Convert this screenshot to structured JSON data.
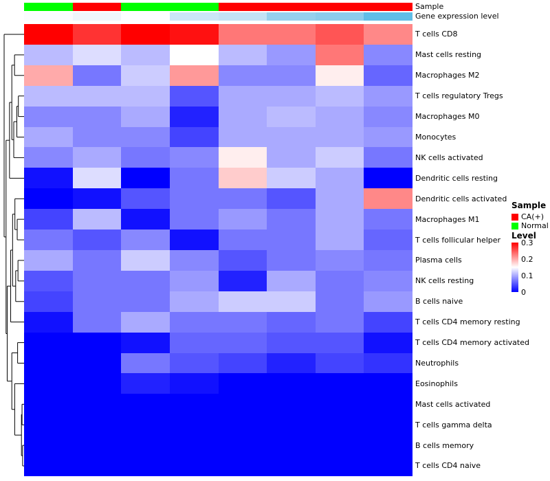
{
  "annotations": {
    "sample_label": "Sample",
    "expression_label": "Gene expression level"
  },
  "legends": {
    "sample": {
      "title": "Sample",
      "items": [
        {
          "label": "CA(+)",
          "color": "#FF0000"
        },
        {
          "label": "Normal",
          "color": "#00FF00"
        }
      ]
    },
    "level": {
      "title": "Level",
      "ticks": [
        "0.3",
        "0.2",
        "0.1",
        "0"
      ],
      "top_color": "#FF0000",
      "mid_color": "#FFFFFF",
      "bottom_color": "#0000FF"
    }
  },
  "chart_data": {
    "type": "heatmap",
    "n_columns": 8,
    "value_range": [
      0,
      0.3
    ],
    "colormap": {
      "low": "#0000FF",
      "mid": "#FFFFFF",
      "high": "#FF0000",
      "midpoint": 0.15
    },
    "rows": [
      "T cells CD8",
      "Mast cells resting",
      "Macrophages M2",
      "T cells regulatory  Tregs",
      "Macrophages M0",
      "Monocytes",
      "NK cells activated",
      "Dendritic cells resting",
      "Dendritic cells activated",
      "Macrophages M1",
      "T cells follicular helper",
      "Plasma cells",
      "NK cells resting",
      "B cells naive",
      "T cells CD4 memory resting",
      "T cells CD4 memory activated",
      "Neutrophils",
      "Eosinophils",
      "Mast cells activated",
      "T cells gamma delta",
      "B cells memory",
      "T cells CD4 naive"
    ],
    "values": [
      [
        0.3,
        0.27,
        0.3,
        0.29,
        0.23,
        0.23,
        0.25,
        0.22
      ],
      [
        0.11,
        0.13,
        0.11,
        0.15,
        0.11,
        0.09,
        0.23,
        0.08
      ],
      [
        0.2,
        0.07,
        0.12,
        0.21,
        0.08,
        0.08,
        0.16,
        0.06
      ],
      [
        0.11,
        0.11,
        0.11,
        0.05,
        0.1,
        0.1,
        0.11,
        0.09
      ],
      [
        0.08,
        0.08,
        0.1,
        0.02,
        0.1,
        0.11,
        0.1,
        0.08
      ],
      [
        0.1,
        0.08,
        0.08,
        0.04,
        0.1,
        0.1,
        0.1,
        0.09
      ],
      [
        0.08,
        0.1,
        0.07,
        0.08,
        0.16,
        0.1,
        0.12,
        0.07
      ],
      [
        0.01,
        0.13,
        0.0,
        0.07,
        0.18,
        0.12,
        0.1,
        0.0
      ],
      [
        0.0,
        0.01,
        0.05,
        0.07,
        0.07,
        0.05,
        0.1,
        0.22
      ],
      [
        0.04,
        0.11,
        0.01,
        0.07,
        0.09,
        0.07,
        0.1,
        0.07
      ],
      [
        0.07,
        0.05,
        0.08,
        0.01,
        0.07,
        0.07,
        0.1,
        0.06
      ],
      [
        0.1,
        0.07,
        0.12,
        0.08,
        0.05,
        0.07,
        0.08,
        0.07
      ],
      [
        0.05,
        0.07,
        0.07,
        0.09,
        0.02,
        0.1,
        0.07,
        0.08
      ],
      [
        0.04,
        0.07,
        0.07,
        0.1,
        0.12,
        0.12,
        0.07,
        0.09
      ],
      [
        0.01,
        0.07,
        0.1,
        0.07,
        0.07,
        0.06,
        0.07,
        0.04
      ],
      [
        0.0,
        0.0,
        0.01,
        0.06,
        0.06,
        0.05,
        0.05,
        0.01
      ],
      [
        0.0,
        0.0,
        0.07,
        0.05,
        0.04,
        0.02,
        0.04,
        0.03
      ],
      [
        0.0,
        0.0,
        0.02,
        0.01,
        0.0,
        0.0,
        0.0,
        0.0
      ],
      [
        0.0,
        0.0,
        0.0,
        0.0,
        0.0,
        0.0,
        0.0,
        0.0
      ],
      [
        0.0,
        0.0,
        0.0,
        0.0,
        0.0,
        0.0,
        0.0,
        0.0
      ],
      [
        0.0,
        0.0,
        0.0,
        0.0,
        0.0,
        0.0,
        0.0,
        0.0
      ],
      [
        0.0,
        0.0,
        0.0,
        0.0,
        0.0,
        0.0,
        0.0,
        0.0
      ]
    ],
    "column_annotations": {
      "sample": [
        "Normal",
        "CA(+)",
        "Normal",
        "Normal",
        "CA(+)",
        "CA(+)",
        "CA(+)",
        "CA(+)"
      ],
      "sample_colors": {
        "CA(+)": "#FF0000",
        "Normal": "#00FF00"
      },
      "gene_expression_colors": [
        "#FBFCFE",
        "#F0F6FC",
        "#FDFEFF",
        "#CBE6F7",
        "#C3E2F5",
        "#96D0EE",
        "#8CCCEC",
        "#5FBDE7"
      ]
    },
    "row_dendrogram": {
      "h": 1.0,
      "children": [
        0,
        {
          "h": 0.9,
          "children": [
            {
              "h": 0.72,
              "children": [
                {
                  "h": 0.6,
                  "children": [
                    {
                      "h": 0.46,
                      "children": [
                        1,
                        2
                      ]
                    },
                    {
                      "h": 0.5,
                      "children": [
                        {
                          "h": 0.34,
                          "children": [
                            {
                              "h": 0.26,
                              "children": [
                                3,
                                4
                              ]
                            },
                            5
                          ]
                        },
                        6
                      ]
                    }
                  ]
                },
                7
              ]
            },
            {
              "h": 0.84,
              "children": [
                {
                  "h": 0.66,
                  "children": [
                    {
                      "h": 0.56,
                      "children": [
                        {
                          "h": 0.44,
                          "children": [
                            8,
                            {
                              "h": 0.32,
                              "children": [
                                9,
                                10
                              ]
                            }
                          ]
                        },
                        {
                          "h": 0.4,
                          "children": [
                            {
                              "h": 0.28,
                              "children": [
                                11,
                                12
                              ]
                            },
                            13
                          ]
                        }
                      ]
                    },
                    14
                  ]
                },
                {
                  "h": 0.6,
                  "children": [
                    {
                      "h": 0.3,
                      "children": [
                        15,
                        16
                      ]
                    },
                    {
                      "h": 0.45,
                      "children": [
                        17,
                        {
                          "h": 0.1,
                          "children": [
                            {
                              "h": 0.07,
                              "children": [
                                18,
                                19
                              ]
                            },
                            {
                              "h": 0.04,
                              "children": [
                                20,
                                21
                              ]
                            }
                          ]
                        }
                      ]
                    }
                  ]
                }
              ]
            }
          ]
        }
      ]
    }
  }
}
